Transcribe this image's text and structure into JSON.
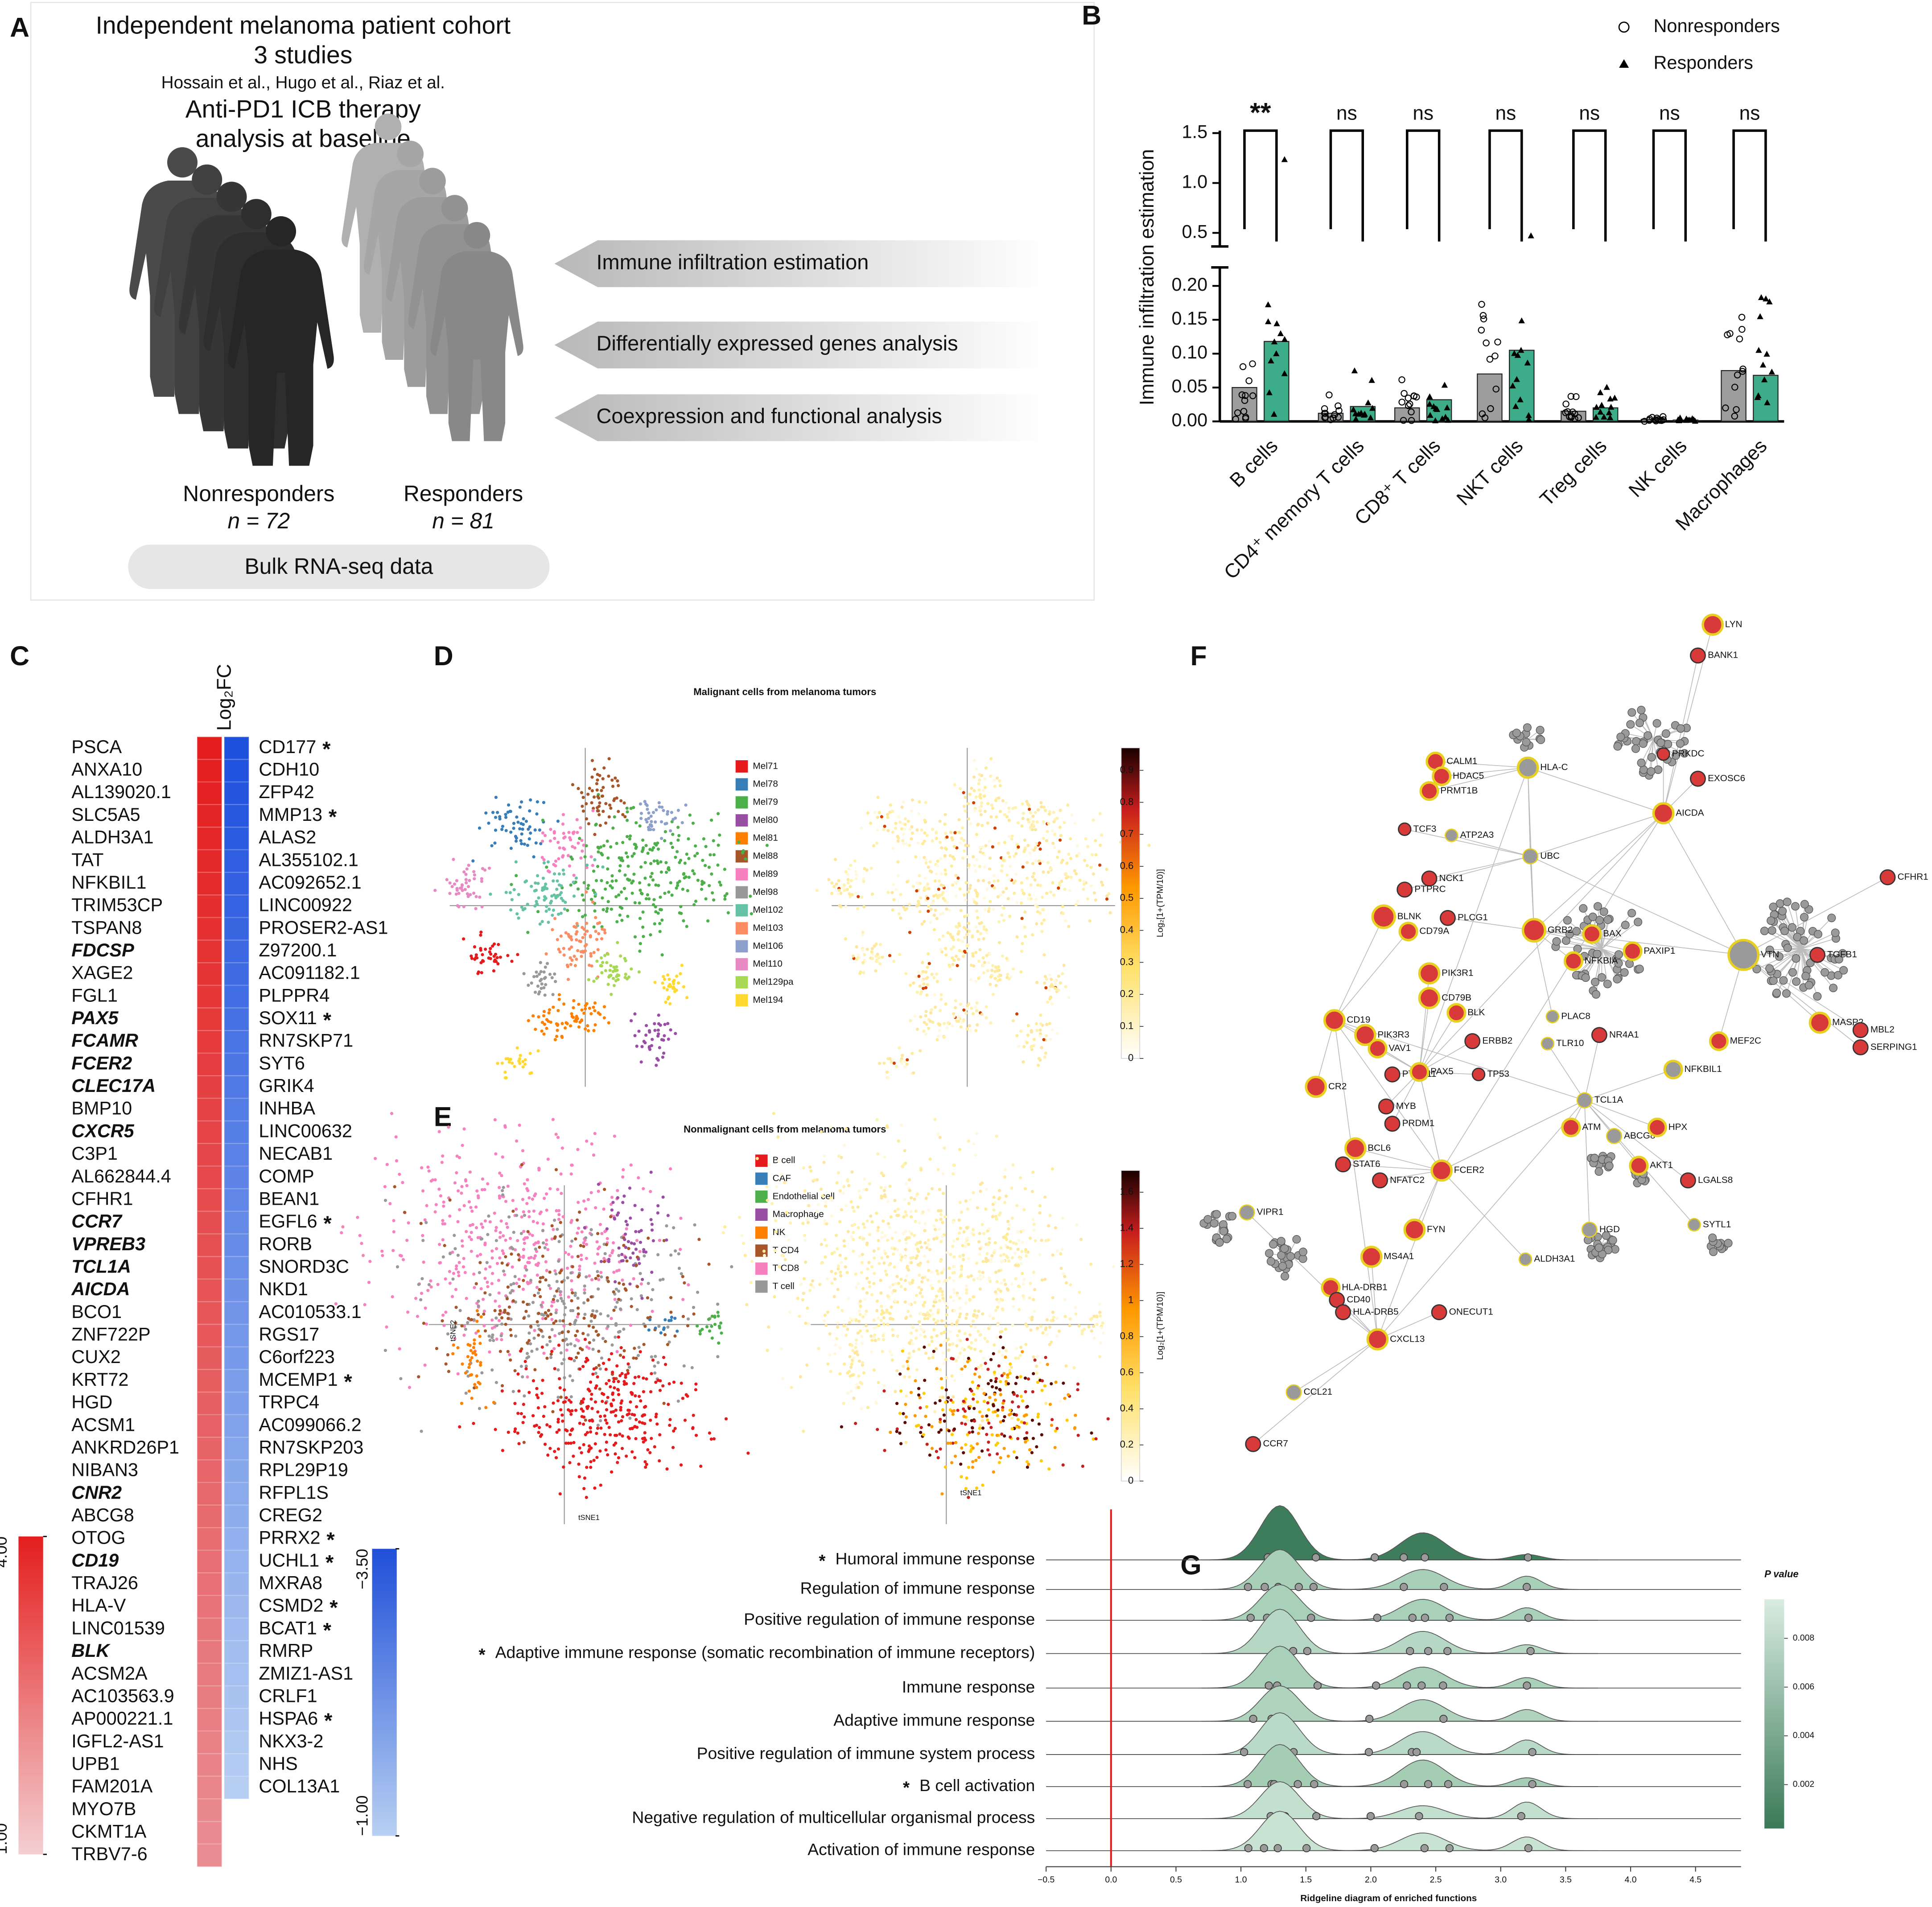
{
  "panel_labels": [
    "A",
    "B",
    "C",
    "D",
    "E",
    "F",
    "G"
  ],
  "panel_a": {
    "title_lines": [
      "Independent melanoma patient cohort",
      "3 studies",
      "Hossain et al., Hugo et al., Riaz et al.",
      "Anti-PD1 ICB therapy",
      "analysis at baseline"
    ],
    "steps": [
      "Immune infiltration estimation",
      "Differentially expressed  genes analysis",
      "Coexpression and functional analysis"
    ],
    "groups": [
      {
        "name": "Nonresponders",
        "n": "n = 72"
      },
      {
        "name": "Responders",
        "n": "n = 81"
      }
    ],
    "footer": "Bulk RNA-seq data"
  },
  "chart_data": {
    "type": "bar",
    "ylabel": "Immune infiltration estimation",
    "categories": [
      "B cells",
      "CD4⁺ memory T cells",
      "CD8⁺ T cells",
      "NKT cells",
      "Treg cells",
      "NK cells",
      "Macrophages"
    ],
    "series": [
      {
        "name": "Nonresponders",
        "color": "#8c8c8c",
        "marker": "circle",
        "values": [
          0.05,
          0.012,
          0.02,
          0.07,
          0.015,
          0.003,
          0.075
        ]
      },
      {
        "name": "Responders",
        "color": "#1a9e74",
        "marker": "triangle",
        "values": [
          0.118,
          0.022,
          0.032,
          0.105,
          0.02,
          0.002,
          0.068
        ]
      }
    ],
    "significance": [
      "**",
      "ns",
      "ns",
      "ns",
      "ns",
      "ns",
      "ns"
    ],
    "ylim": [
      0,
      1.5
    ],
    "y_break": [
      0.2,
      0.5
    ],
    "yticks": [
      {
        "value": 0,
        "label": "0.00"
      },
      {
        "value": 0.05,
        "label": "0.05"
      },
      {
        "value": 0.1,
        "label": "0.10"
      },
      {
        "value": 0.15,
        "label": "0.15"
      },
      {
        "value": 0.2,
        "label": "0.20"
      },
      {
        "value": 0.5,
        "label": "0.5"
      },
      {
        "value": 1,
        "label": "1.0"
      },
      {
        "value": 1.5,
        "label": "1.5"
      }
    ],
    "legend": "top-right"
  },
  "heatmap": {
    "title": "Log₂FC",
    "up_genes": [
      "PSCA",
      "ANXA10",
      "AL139020.1",
      "SLC5A5",
      "ALDH3A1",
      "TAT",
      "NFKBIL1",
      "TRIM53CP",
      "TSPAN8",
      "FDCSP",
      "XAGE2",
      "FGL1",
      "PAX5",
      "FCAMR",
      "FCER2",
      "CLEC17A",
      "BMP10",
      "CXCR5",
      "C3P1",
      "AL662844.4",
      "CFHR1",
      "CCR7",
      "VPREB3",
      "TCL1A",
      "AICDA",
      "BCO1",
      "ZNF722P",
      "CUX2",
      "KRT72",
      "HGD",
      "ACSM1",
      "ANKRD26P1",
      "NIBAN3",
      "CNR2",
      "ABCG8",
      "OTOG",
      "CD19",
      "TRAJ26",
      "HLA-V",
      "LINC01539",
      "BLK",
      "ACSM2A",
      "AC103563.9",
      "AP000221.1",
      "IGFL2-AS1",
      "UPB1",
      "FAM201A",
      "MYO7B",
      "CKMT1A",
      "TRBV7-6"
    ],
    "emphasized": [
      9,
      12,
      13,
      14,
      15,
      17,
      21,
      22,
      23,
      24,
      33,
      36,
      40
    ],
    "down_genes": [
      "CD177",
      "CDH10",
      "ZFP42",
      "MMP13",
      "ALAS2",
      "AL355102.1",
      "AC092652.1",
      "LINC00922",
      "PROSER2-AS1",
      "Z97200.1",
      "AC091182.1",
      "PLPPR4",
      "SOX11",
      "RN7SKP71",
      "SYT6",
      "GRIK4",
      "INHBA",
      "LINC00632",
      "NECAB1",
      "COMP",
      "BEAN1",
      "EGFL6",
      "RORB",
      "SNORD3C",
      "NKD1",
      "AC010533.1",
      "RGS17",
      "C6orf223",
      "MCEMP1",
      "TRPC4",
      "AC099066.2",
      "RN7SKP203",
      "RPL29P19",
      "RFPL1S",
      "CREG2",
      "PRRX2",
      "UCHL1",
      "MXRA8",
      "CSMD2",
      "BCAT1",
      "RMRP",
      "ZMIZ1-AS1",
      "CRLF1",
      "HSPA6",
      "NKX3-2",
      "NHS",
      "COL13A1"
    ],
    "starred": [
      0,
      3,
      12,
      21,
      28,
      35,
      36,
      38,
      39,
      43
    ],
    "marker": "*",
    "up_colorbar": [
      {
        "value": 4,
        "label": "4.00"
      },
      {
        "value": 1,
        "label": "1.00"
      }
    ],
    "down_colorbar": [
      {
        "value": -3.5,
        "label": "−3.50"
      },
      {
        "value": -1,
        "label": "−1.00"
      }
    ]
  },
  "panel_d": {
    "title": "Malignant cells from melanoma tumors",
    "legend": [
      "Mel71",
      "Mel78",
      "Mel79",
      "Mel80",
      "Mel81",
      "Mel88",
      "Mel89",
      "Mel98",
      "Mel102",
      "Mel103",
      "Mel106",
      "Mel110",
      "Mel129pa",
      "Mel194"
    ],
    "colors": [
      "#e41a1c",
      "#377eb8",
      "#4daf4a",
      "#984ea3",
      "#ff7f00",
      "#a65628",
      "#f781bf",
      "#999999",
      "#66c2a5",
      "#fc8d62",
      "#8da0cb",
      "#e78ac3",
      "#a6d854",
      "#ffd92f"
    ],
    "colorbar_label": "Log₂[1+(TPM/10)]",
    "colorbar_ticks": [
      0,
      0.1,
      0.2,
      0.3,
      0.4,
      0.5,
      0.6,
      0.7,
      0.8,
      0.9
    ],
    "colorbar_lim": [
      0,
      0.97
    ]
  },
  "panel_e": {
    "title": "Nonmalignant cells from melanoma tumors",
    "legend": [
      "B cell",
      "CAF",
      "Endothelial cell",
      "Macrophage",
      "NK",
      "T CD4",
      "T CD8",
      "T cell"
    ],
    "colors": [
      "#e41a1c",
      "#377eb8",
      "#4daf4a",
      "#984ea3",
      "#ff7f00",
      "#a65628",
      "#f781bf",
      "#999999"
    ],
    "axis_x": "tSNE1",
    "axis_y": "tSNE2",
    "colorbar_label": "Log₂[1+(TPM/10)]",
    "colorbar_ticks": [
      0,
      0.2,
      0.4,
      0.6,
      0.8,
      1,
      1.2,
      1.4,
      1.6
    ],
    "colorbar_lim": [
      0,
      1.72
    ]
  },
  "network": {
    "labels": [
      "LYN",
      "BANK1",
      "CALM1",
      "HDAC5",
      "PRKDC",
      "HLA-C",
      "EXOSC6",
      "PRMT1B",
      "AICDA",
      "TCF3",
      "ATP2A3",
      "UBC",
      "NCK1",
      "PTPRC",
      "BLNK",
      "PLCG1",
      "CD79A",
      "GRB2",
      "BAX",
      "PAXIP1",
      "NFKBIA",
      "VTN",
      "TGFB1",
      "CFHR1",
      "PIK3R1",
      "CD79B",
      "BLK",
      "CD19",
      "PIK3R3",
      "VAV1",
      "ERBB2",
      "PTPN11",
      "PLAC8",
      "MEF2C",
      "MASP2",
      "MBL2",
      "SERPING1",
      "TLR10",
      "NR4A1",
      "PAX5",
      "TP53",
      "NFKBIL1",
      "CR2",
      "TCL1A",
      "MYB",
      "PRDM1",
      "ATM",
      "ABCG8",
      "HPX",
      "BCL6",
      "STAT6",
      "NFATC2",
      "FCER2",
      "AKT1",
      "LGALS8",
      "VIPR1",
      "FYN",
      "HGD",
      "SYTL1",
      "MS4A1",
      "ALDH3A1",
      "HLA-DRB1",
      "CD40",
      "HLA-DRB5",
      "ONECUT1",
      "CXCL13",
      "CCL21",
      "CCR7"
    ]
  },
  "ridgeline": {
    "xlabel": "Ridgeline diagram of enriched functions",
    "categories": [
      "Humoral immune response",
      "Regulation of immune response",
      "Positive regulation of immune response",
      "Adaptive immune response (somatic recombination of immune receptors)",
      "Immune response",
      "Adaptive immune response",
      "Positive regulation of immune system process",
      "B cell activation",
      "Negative regulation of multicellular organismal process",
      "Activation of immune response"
    ],
    "starred": [
      0,
      3,
      7
    ],
    "marker": "*",
    "xlim": [
      -0.5,
      4.85
    ],
    "xticks": [
      {
        "value": -0.5,
        "label": "−0.5"
      },
      {
        "value": 0,
        "label": "0.0"
      },
      {
        "value": 0.5,
        "label": "0.5"
      },
      {
        "value": 1,
        "label": "1.0"
      },
      {
        "value": 1.5,
        "label": "1.5"
      },
      {
        "value": 2,
        "label": "2.0"
      },
      {
        "value": 2.5,
        "label": "2.5"
      },
      {
        "value": 3,
        "label": "3.0"
      },
      {
        "value": 3.5,
        "label": "3.5"
      },
      {
        "value": 4,
        "label": "4.0"
      },
      {
        "value": 4.5,
        "label": "4.5"
      }
    ],
    "legend_title": "P value",
    "legend_ticks": [
      0.002,
      0.004,
      0.006,
      0.008
    ],
    "legend_lim": [
      0.0002,
      0.0096
    ],
    "reference_line": 0
  }
}
